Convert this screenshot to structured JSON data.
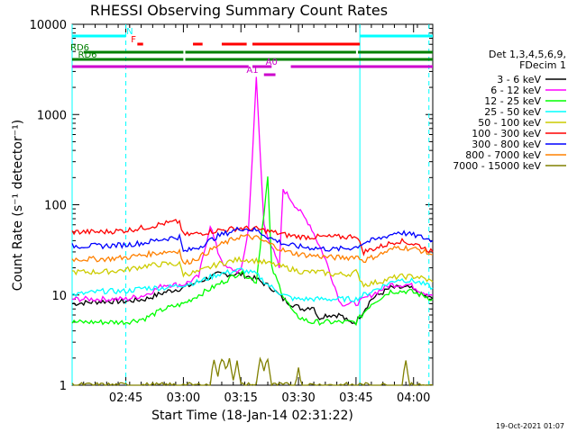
{
  "chart_data": {
    "type": "line",
    "title": "RHESSI Observing Summary Count Rates",
    "xlabel": "Start Time (18-Jan-14 02:31:22)",
    "ylabel": "Count Rate (s⁻¹ detector⁻¹)",
    "y_scale": "log",
    "ylim": [
      1,
      10000
    ],
    "xlim_minutes_after_0231": [
      0,
      94
    ],
    "x_ticks": [
      {
        "label": "02:45",
        "t": 14
      },
      {
        "label": "03:00",
        "t": 29
      },
      {
        "label": "03:15",
        "t": 44
      },
      {
        "label": "03:30",
        "t": 59
      },
      {
        "label": "03:45",
        "t": 74
      },
      {
        "label": "04:00",
        "t": 89
      }
    ],
    "y_ticks": [
      {
        "label": "1",
        "v": 1
      },
      {
        "label": "10",
        "v": 10
      },
      {
        "label": "100",
        "v": 100
      },
      {
        "label": "1000",
        "v": 1000
      },
      {
        "label": "10000",
        "v": 10000
      }
    ],
    "legend_header": [
      "Det 1,3,4,5,6,9,",
      "FDecim 1"
    ],
    "legend_position": "right",
    "series": [
      {
        "name": "3 - 6 keV",
        "color": "#000000",
        "points": [
          [
            0,
            8
          ],
          [
            8,
            8.5
          ],
          [
            14,
            8.5
          ],
          [
            19,
            9
          ],
          [
            25,
            11
          ],
          [
            29,
            12
          ],
          [
            33,
            14
          ],
          [
            38,
            17
          ],
          [
            44,
            17
          ],
          [
            48,
            15
          ],
          [
            52,
            12
          ],
          [
            55,
            9
          ],
          [
            57,
            8
          ],
          [
            60,
            7
          ],
          [
            63,
            7.5
          ],
          [
            64,
            5.5
          ],
          [
            66,
            6
          ],
          [
            70,
            6
          ],
          [
            72,
            5
          ],
          [
            74,
            5
          ],
          [
            78,
            9
          ],
          [
            83,
            12
          ],
          [
            88,
            12
          ],
          [
            91,
            10
          ],
          [
            94,
            9
          ]
        ]
      },
      {
        "name": "6 - 12 keV",
        "color": "#ff00ff",
        "points": [
          [
            0,
            9
          ],
          [
            8,
            9
          ],
          [
            14,
            9
          ],
          [
            19,
            10
          ],
          [
            24,
            13
          ],
          [
            29,
            13
          ],
          [
            33,
            16
          ],
          [
            36,
            60
          ],
          [
            38,
            30
          ],
          [
            40,
            20
          ],
          [
            44,
            18
          ],
          [
            46,
            55
          ],
          [
            48,
            2500
          ],
          [
            50,
            60
          ],
          [
            54,
            20
          ],
          [
            55,
            150
          ],
          [
            58,
            100
          ],
          [
            62,
            60
          ],
          [
            66,
            25
          ],
          [
            70,
            8
          ],
          [
            74,
            8
          ],
          [
            78,
            10
          ],
          [
            83,
            13
          ],
          [
            88,
            13
          ],
          [
            91,
            11
          ],
          [
            94,
            10
          ]
        ]
      },
      {
        "name": "12 - 25 keV",
        "color": "#00ff00",
        "points": [
          [
            0,
            5
          ],
          [
            8,
            5
          ],
          [
            14,
            5
          ],
          [
            19,
            5.5
          ],
          [
            24,
            7
          ],
          [
            29,
            8
          ],
          [
            33,
            10
          ],
          [
            38,
            13
          ],
          [
            44,
            18
          ],
          [
            48,
            14
          ],
          [
            51,
            200
          ],
          [
            52,
            20
          ],
          [
            55,
            10
          ],
          [
            58,
            6
          ],
          [
            62,
            5
          ],
          [
            66,
            5
          ],
          [
            70,
            5
          ],
          [
            74,
            5
          ],
          [
            78,
            8
          ],
          [
            83,
            11
          ],
          [
            88,
            11
          ],
          [
            91,
            10
          ],
          [
            94,
            9
          ]
        ]
      },
      {
        "name": "25 - 50 keV",
        "color": "#00ffff",
        "points": [
          [
            0,
            10
          ],
          [
            8,
            11
          ],
          [
            14,
            11
          ],
          [
            19,
            12
          ],
          [
            24,
            12
          ],
          [
            29,
            13
          ],
          [
            33,
            14
          ],
          [
            38,
            17
          ],
          [
            44,
            19
          ],
          [
            48,
            17
          ],
          [
            51,
            13
          ],
          [
            55,
            10
          ],
          [
            58,
            9
          ],
          [
            62,
            9
          ],
          [
            66,
            9
          ],
          [
            70,
            9
          ],
          [
            74,
            9
          ],
          [
            76,
            10
          ],
          [
            80,
            12
          ],
          [
            85,
            15
          ],
          [
            90,
            14
          ],
          [
            94,
            12
          ]
        ]
      },
      {
        "name": "50 - 100 keV",
        "color": "#cccc00",
        "points": [
          [
            0,
            18
          ],
          [
            8,
            18
          ],
          [
            14,
            19
          ],
          [
            19,
            21
          ],
          [
            24,
            22
          ],
          [
            28,
            22
          ],
          [
            29,
            17
          ],
          [
            33,
            18
          ],
          [
            38,
            22
          ],
          [
            44,
            25
          ],
          [
            48,
            24
          ],
          [
            52,
            22
          ],
          [
            56,
            20
          ],
          [
            60,
            18
          ],
          [
            64,
            18
          ],
          [
            68,
            17
          ],
          [
            72,
            17
          ],
          [
            74,
            18
          ],
          [
            76,
            13
          ],
          [
            80,
            14
          ],
          [
            85,
            16
          ],
          [
            90,
            16
          ],
          [
            94,
            14
          ]
        ]
      },
      {
        "name": "100 - 300 keV",
        "color": "#ff0000",
        "points": [
          [
            0,
            50
          ],
          [
            8,
            50
          ],
          [
            14,
            52
          ],
          [
            19,
            56
          ],
          [
            24,
            62
          ],
          [
            28,
            65
          ],
          [
            29,
            46
          ],
          [
            33,
            48
          ],
          [
            38,
            52
          ],
          [
            44,
            55
          ],
          [
            48,
            54
          ],
          [
            52,
            50
          ],
          [
            56,
            46
          ],
          [
            60,
            44
          ],
          [
            64,
            44
          ],
          [
            68,
            44
          ],
          [
            72,
            44
          ],
          [
            74,
            46
          ],
          [
            76,
            30
          ],
          [
            80,
            34
          ],
          [
            85,
            40
          ],
          [
            90,
            36
          ],
          [
            94,
            30
          ]
        ]
      },
      {
        "name": "300 - 800 keV",
        "color": "#0000ff",
        "points": [
          [
            0,
            35
          ],
          [
            8,
            35
          ],
          [
            14,
            36
          ],
          [
            19,
            38
          ],
          [
            24,
            42
          ],
          [
            28,
            44
          ],
          [
            29,
            30
          ],
          [
            33,
            34
          ],
          [
            38,
            45
          ],
          [
            44,
            55
          ],
          [
            48,
            52
          ],
          [
            52,
            42
          ],
          [
            56,
            36
          ],
          [
            60,
            34
          ],
          [
            64,
            33
          ],
          [
            68,
            32
          ],
          [
            72,
            33
          ],
          [
            74,
            34
          ],
          [
            76,
            38
          ],
          [
            80,
            42
          ],
          [
            85,
            50
          ],
          [
            90,
            45
          ],
          [
            94,
            40
          ]
        ]
      },
      {
        "name": "800 - 7000 keV",
        "color": "#ff8000",
        "points": [
          [
            0,
            25
          ],
          [
            8,
            25
          ],
          [
            14,
            26
          ],
          [
            19,
            28
          ],
          [
            24,
            30
          ],
          [
            28,
            31
          ],
          [
            29,
            22
          ],
          [
            33,
            26
          ],
          [
            38,
            35
          ],
          [
            44,
            45
          ],
          [
            48,
            43
          ],
          [
            52,
            36
          ],
          [
            56,
            30
          ],
          [
            60,
            28
          ],
          [
            64,
            27
          ],
          [
            68,
            26
          ],
          [
            72,
            26
          ],
          [
            74,
            27
          ],
          [
            76,
            24
          ],
          [
            80,
            28
          ],
          [
            85,
            34
          ],
          [
            90,
            32
          ],
          [
            94,
            28
          ]
        ]
      },
      {
        "name": "7000 - 15000 keV",
        "color": "#808000",
        "points": [
          [
            0,
            1
          ],
          [
            36,
            1
          ],
          [
            37,
            2
          ],
          [
            38,
            1.3
          ],
          [
            39,
            2
          ],
          [
            40,
            1.5
          ],
          [
            41,
            2
          ],
          [
            42,
            1.2
          ],
          [
            43,
            1.8
          ],
          [
            44,
            1
          ],
          [
            48,
            1
          ],
          [
            49,
            2
          ],
          [
            50,
            1.5
          ],
          [
            51,
            2
          ],
          [
            52,
            1
          ],
          [
            58,
            1
          ],
          [
            59,
            1.5
          ],
          [
            60,
            1
          ],
          [
            86,
            1
          ],
          [
            87,
            2
          ],
          [
            88,
            1
          ],
          [
            94,
            1
          ]
        ]
      }
    ],
    "flag_bars": [
      {
        "label": "N",
        "color": "#00ffff",
        "segments": [
          [
            0,
            14
          ],
          [
            75,
            94
          ]
        ],
        "label_t": 15
      },
      {
        "label": "F",
        "color": "#ff0000",
        "segments": [
          [
            17,
            18.5
          ],
          [
            31.5,
            34
          ],
          [
            39,
            45.5
          ],
          [
            47,
            75
          ]
        ],
        "label_t": 16
      },
      {
        "label": "RD6",
        "color": "#007f00",
        "segments": [
          [
            3,
            29
          ],
          [
            29.5,
            74
          ],
          [
            74.5,
            94
          ]
        ],
        "label_t": 2
      },
      {
        "label": "RD6",
        "color": "#007f00",
        "segments": [
          [
            0,
            2
          ],
          [
            2,
            29
          ],
          [
            29.5,
            94
          ]
        ],
        "label_t": 4
      },
      {
        "label": "A0",
        "color": "#cc00cc",
        "segments": [
          [
            0,
            46
          ],
          [
            47,
            52
          ],
          [
            57,
            94
          ]
        ],
        "label_t": 52
      },
      {
        "label": "A1",
        "color": "#cc00cc",
        "segments": [
          [
            50,
            53
          ]
        ],
        "label_t": 47
      }
    ],
    "vlines": [
      {
        "t": 0,
        "style": "solid",
        "color": "#00ffff"
      },
      {
        "t": 14,
        "style": "dashed",
        "color": "#00ffff"
      },
      {
        "t": 75,
        "style": "solid",
        "color": "#00ffff"
      },
      {
        "t": 93,
        "style": "dashed",
        "color": "#00ffff"
      }
    ],
    "footer_date": "19-Oct-2021 01:07"
  }
}
